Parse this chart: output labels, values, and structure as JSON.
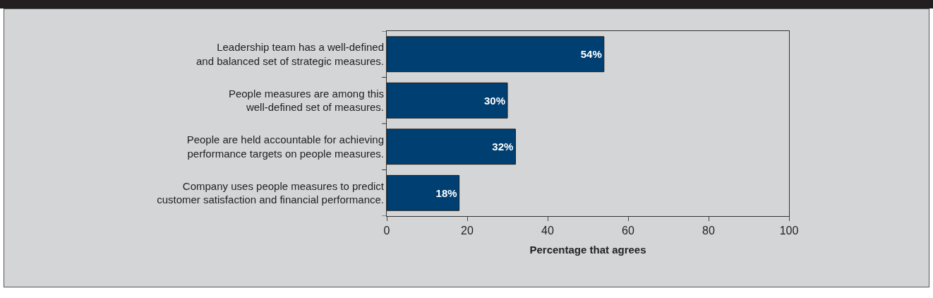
{
  "chart_data": {
    "type": "bar",
    "orientation": "horizontal",
    "xlabel": "Percentage that agrees",
    "categories": [
      "Leadership team has a well-defined and balanced set of strategic measures.",
      "People measures are among this well-defined set of measures.",
      "People are held accountable for achieving performance targets on people measures.",
      "Company uses people measures to predict customer satisfaction and financial performance."
    ],
    "values": [
      54,
      30,
      32,
      18
    ],
    "value_labels": [
      "54%",
      "30%",
      "32%",
      "18%"
    ],
    "color": "#003f72",
    "xlim": [
      0,
      100
    ],
    "xticks": [
      0,
      20,
      40,
      60,
      80,
      100
    ],
    "grid": false
  }
}
